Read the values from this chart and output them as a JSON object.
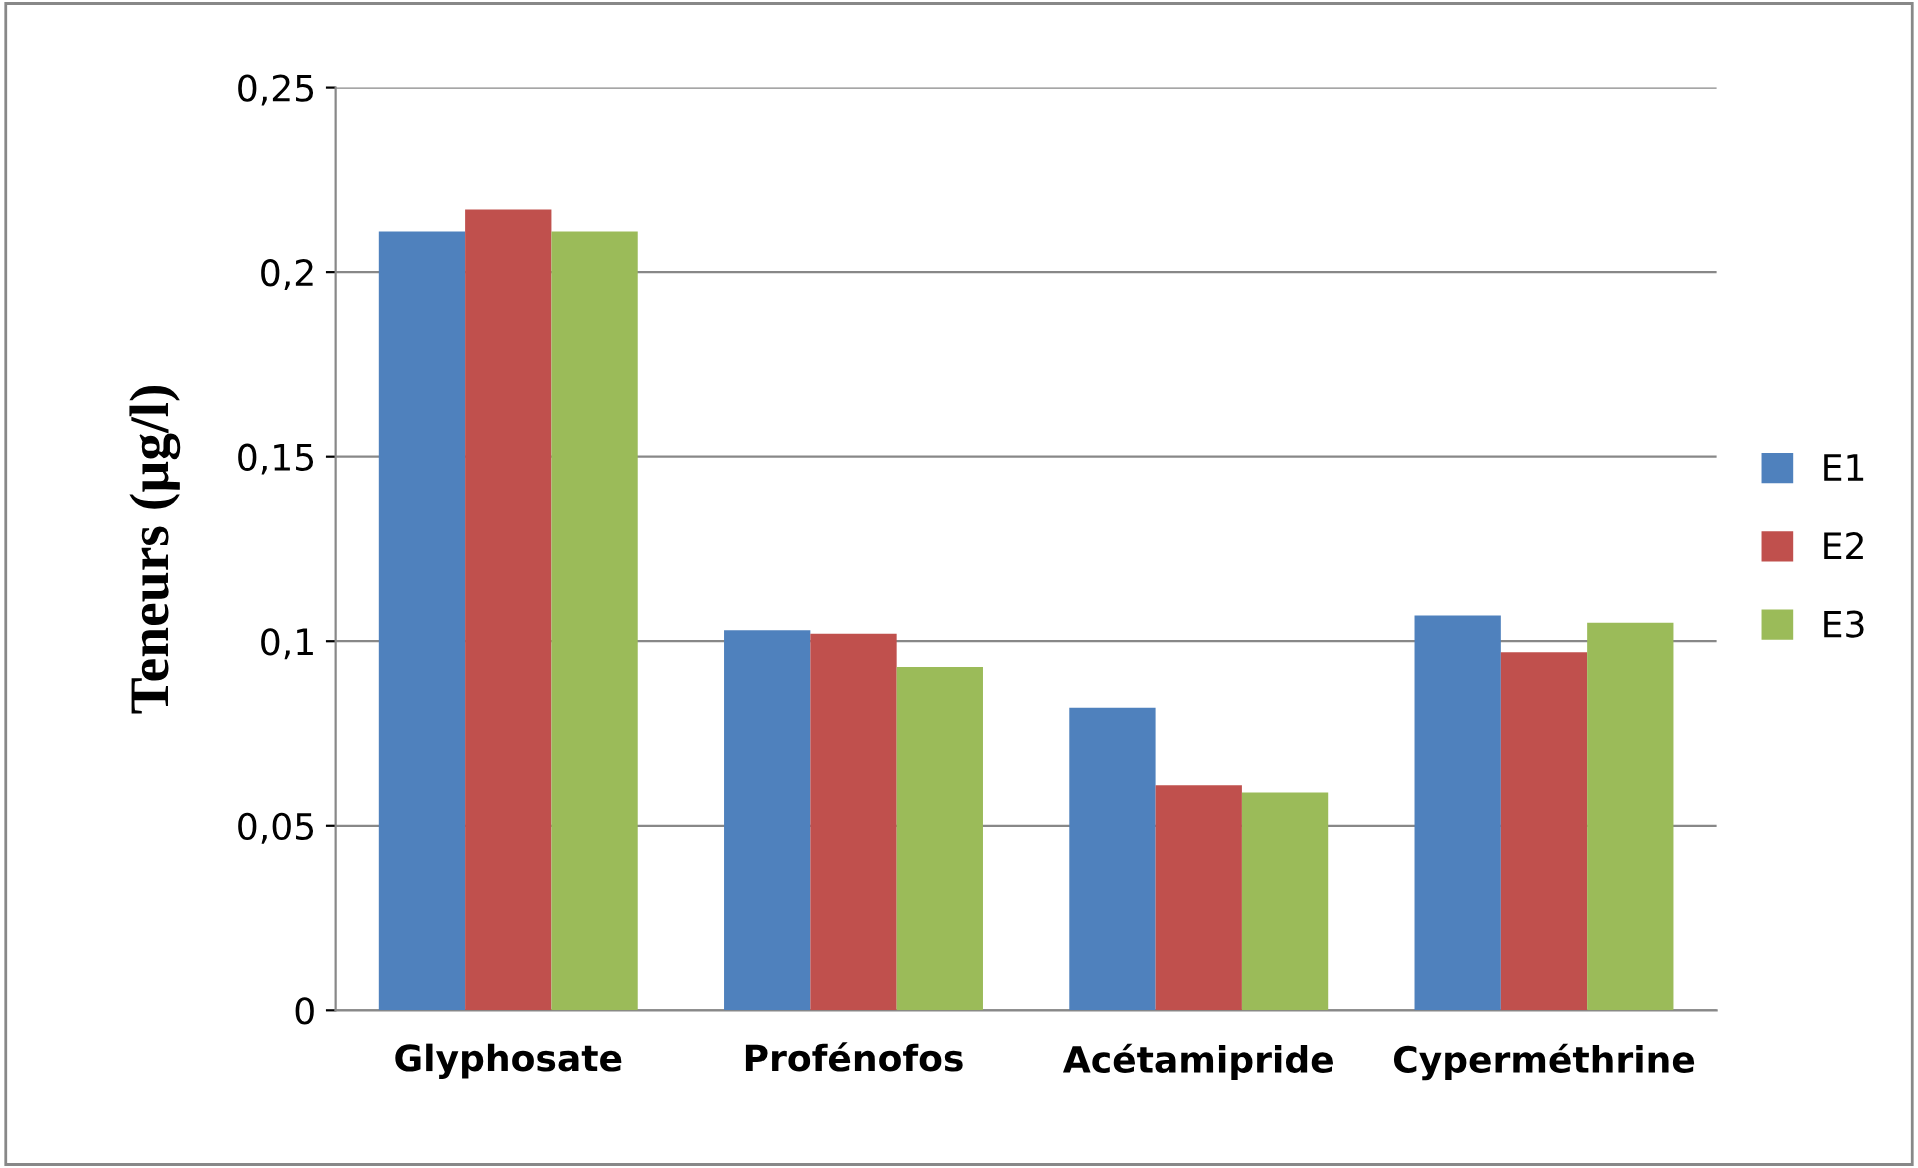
{
  "chart_data": {
    "type": "bar",
    "ylabel": "Teneurs (µg/l)",
    "categories": [
      "Glyphosate",
      "Profénofos",
      "Acétamipride",
      "Cyperméthrine"
    ],
    "series": [
      {
        "name": "E1",
        "color": "#4f81bd",
        "values": [
          0.211,
          0.103,
          0.082,
          0.107
        ]
      },
      {
        "name": "E2",
        "color": "#c0504d",
        "values": [
          0.217,
          0.102,
          0.061,
          0.097
        ]
      },
      {
        "name": "E3",
        "color": "#9bbb59",
        "values": [
          0.211,
          0.093,
          0.059,
          0.105
        ]
      }
    ],
    "ylim": [
      0,
      0.25
    ],
    "yticks": [
      0,
      {
        "value": 0.05,
        "label": "0,05"
      },
      {
        "value": 0.1,
        "label": "0,1"
      },
      {
        "value": 0.15,
        "label": "0,15"
      },
      {
        "value": 0.2,
        "label": "0,2"
      },
      {
        "value": 0.25,
        "label": "0,25"
      }
    ],
    "grid": "y",
    "legend": "right"
  }
}
